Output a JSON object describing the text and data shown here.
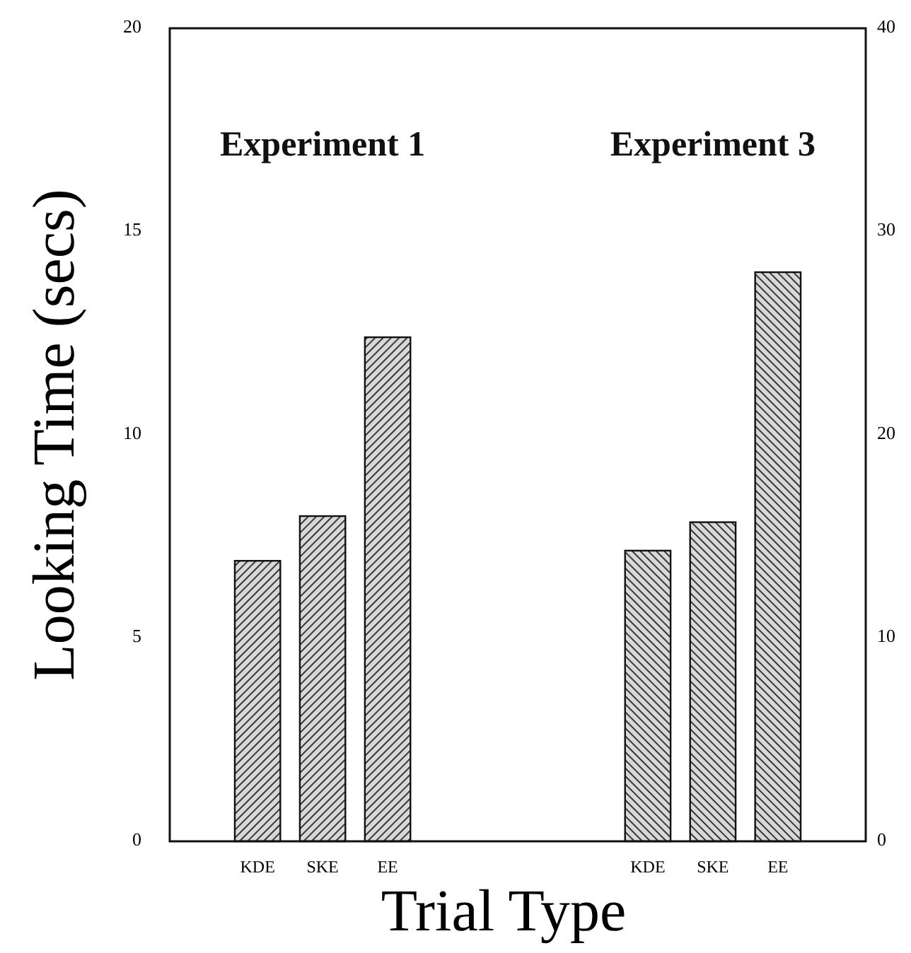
{
  "chart_data": {
    "type": "bar",
    "xlabel": "Trial Type",
    "ylabel": "Looking Time (secs)",
    "categories": [
      null,
      "KDE",
      "SKE",
      "EE",
      null,
      null,
      null,
      "KDE",
      "SKE",
      "EE",
      null
    ],
    "series": [
      {
        "color": "#111111",
        "values": [
          null,
          6.9,
          8.0,
          12.4,
          null,
          null,
          null,
          null,
          null,
          null,
          null
        ]
      },
      {
        "color": "#111111",
        "axis": "y2",
        "values": [
          null,
          null,
          null,
          null,
          null,
          null,
          null,
          14.3,
          15.7,
          28.0,
          null
        ]
      }
    ],
    "ylim": [
      0,
      20
    ],
    "yticks": [
      0,
      5,
      10,
      15,
      20
    ],
    "y2lim": [
      0,
      40
    ],
    "y2ticks": [
      0,
      10,
      20,
      30,
      40
    ],
    "annotations": [
      "Experiment 1",
      "Experiment 3"
    ],
    "grid": false
  }
}
